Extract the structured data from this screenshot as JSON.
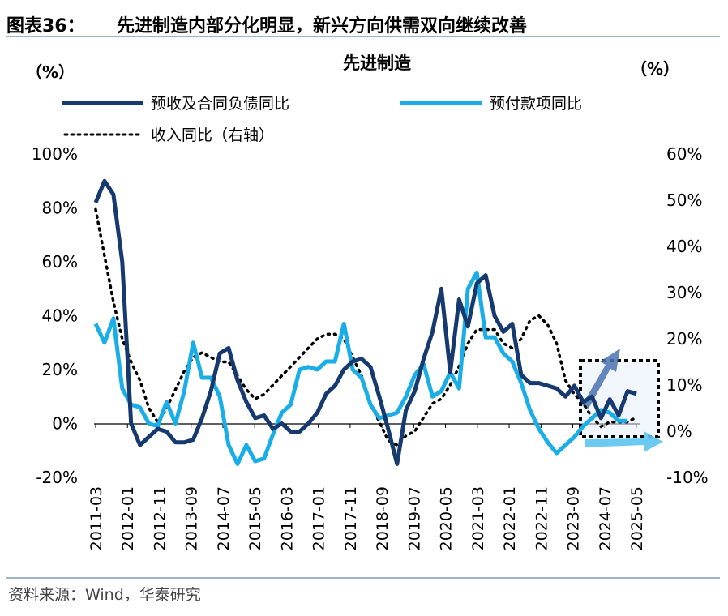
{
  "figure": {
    "label": "图表36：",
    "title": "先进制造内部分化明显，新兴方向供需双向继续改善",
    "source": "资料来源：Wind，华泰研究"
  },
  "colors": {
    "contract_liab": "#163a70",
    "advance": "#1aaee8",
    "revenue": "#000000",
    "highlight_box": "#000000",
    "arrow_up": "#4a72b0",
    "arrow_right": "#5cc3ee"
  },
  "chart_data": {
    "type": "line",
    "title": "先进制造",
    "left_unit": "（%）",
    "right_unit": "（%）",
    "x_ticks": [
      "2011-03",
      "2012-01",
      "2012-11",
      "2013-09",
      "2014-07",
      "2015-05",
      "2016-03",
      "2017-01",
      "2017-11",
      "2018-09",
      "2019-07",
      "2020-05",
      "2021-03",
      "2022-01",
      "2022-11",
      "2023-09",
      "2024-07",
      "2025-05"
    ],
    "left_axis": {
      "min": -20,
      "max": 100,
      "ticks": [
        "-20%",
        "0%",
        "20%",
        "40%",
        "60%",
        "80%",
        "100%"
      ]
    },
    "right_axis": {
      "min": -10,
      "max": 60,
      "ticks": [
        "-10%",
        "0%",
        "10%",
        "20%",
        "30%",
        "40%",
        "50%",
        "60%"
      ]
    },
    "legend": [
      "预收及合同负债同比",
      "预付款项同比",
      "收入同比（右轴）"
    ],
    "series": [
      {
        "name": "预收及合同负债同比",
        "axis": "left",
        "style": "solid-dark",
        "points": [
          [
            0,
            82
          ],
          [
            1,
            90
          ],
          [
            2,
            85
          ],
          [
            3,
            60
          ],
          [
            4,
            0
          ],
          [
            5,
            -8
          ],
          [
            6,
            -5
          ],
          [
            7,
            -2
          ],
          [
            8,
            -3
          ],
          [
            9,
            -7
          ],
          [
            10,
            -7
          ],
          [
            11,
            -6
          ],
          [
            12,
            2
          ],
          [
            13,
            12
          ],
          [
            14,
            26
          ],
          [
            15,
            28
          ],
          [
            16,
            16
          ],
          [
            17,
            8
          ],
          [
            18,
            2
          ],
          [
            19,
            3
          ],
          [
            20,
            -2
          ],
          [
            21,
            0
          ],
          [
            22,
            -3
          ],
          [
            23,
            -3
          ],
          [
            24,
            0
          ],
          [
            25,
            4
          ],
          [
            26,
            11
          ],
          [
            27,
            14
          ],
          [
            28,
            20
          ],
          [
            29,
            23
          ],
          [
            30,
            24
          ],
          [
            31,
            21
          ],
          [
            32,
            10
          ],
          [
            33,
            -2
          ],
          [
            34,
            -15
          ],
          [
            35,
            5
          ],
          [
            36,
            12
          ],
          [
            37,
            24
          ],
          [
            38,
            34
          ],
          [
            39,
            50
          ],
          [
            40,
            19
          ],
          [
            41,
            46
          ],
          [
            42,
            36
          ],
          [
            43,
            52
          ],
          [
            44,
            55
          ],
          [
            45,
            40
          ],
          [
            46,
            34
          ],
          [
            47,
            37
          ],
          [
            48,
            18
          ],
          [
            49,
            15
          ],
          [
            50,
            15
          ],
          [
            51,
            14
          ],
          [
            52,
            13
          ],
          [
            53,
            10
          ],
          [
            54,
            14
          ],
          [
            55,
            8
          ],
          [
            56,
            10
          ],
          [
            57,
            2
          ],
          [
            58,
            9
          ],
          [
            59,
            3
          ],
          [
            60,
            12
          ],
          [
            61,
            11
          ]
        ]
      },
      {
        "name": "预付款项同比",
        "axis": "left",
        "style": "solid-light",
        "points": [
          [
            0,
            37
          ],
          [
            1,
            30
          ],
          [
            2,
            39
          ],
          [
            3,
            13
          ],
          [
            4,
            7
          ],
          [
            5,
            6
          ],
          [
            6,
            0
          ],
          [
            7,
            -1
          ],
          [
            8,
            8
          ],
          [
            9,
            0
          ],
          [
            10,
            12
          ],
          [
            11,
            30
          ],
          [
            12,
            17
          ],
          [
            13,
            17
          ],
          [
            14,
            10
          ],
          [
            15,
            -8
          ],
          [
            16,
            -15
          ],
          [
            17,
            -8
          ],
          [
            18,
            -14
          ],
          [
            19,
            -13
          ],
          [
            20,
            -4
          ],
          [
            21,
            4
          ],
          [
            22,
            7
          ],
          [
            23,
            20
          ],
          [
            24,
            21
          ],
          [
            25,
            20
          ],
          [
            26,
            23
          ],
          [
            27,
            23
          ],
          [
            28,
            37
          ],
          [
            29,
            20
          ],
          [
            30,
            17
          ],
          [
            31,
            7
          ],
          [
            32,
            2
          ],
          [
            33,
            3
          ],
          [
            34,
            4
          ],
          [
            35,
            10
          ],
          [
            36,
            18
          ],
          [
            37,
            22
          ],
          [
            38,
            10
          ],
          [
            39,
            12
          ],
          [
            40,
            19
          ],
          [
            41,
            13
          ],
          [
            42,
            50
          ],
          [
            43,
            56
          ],
          [
            44,
            32
          ],
          [
            45,
            32
          ],
          [
            46,
            26
          ],
          [
            47,
            23
          ],
          [
            48,
            15
          ],
          [
            49,
            5
          ],
          [
            50,
            -2
          ],
          [
            51,
            -7
          ],
          [
            52,
            -11
          ],
          [
            53,
            -8
          ],
          [
            54,
            -5
          ],
          [
            55,
            -1
          ],
          [
            56,
            2
          ],
          [
            57,
            5
          ],
          [
            58,
            4
          ],
          [
            59,
            1
          ],
          [
            60,
            1
          ]
        ]
      },
      {
        "name": "收入同比（右轴）",
        "axis": "right",
        "style": "dotted",
        "points": [
          [
            0,
            48
          ],
          [
            1,
            38
          ],
          [
            2,
            28
          ],
          [
            3,
            20
          ],
          [
            4,
            15
          ],
          [
            5,
            11
          ],
          [
            6,
            5
          ],
          [
            7,
            2
          ],
          [
            8,
            5
          ],
          [
            9,
            9
          ],
          [
            10,
            13
          ],
          [
            11,
            16
          ],
          [
            12,
            17
          ],
          [
            13,
            16
          ],
          [
            14,
            15
          ],
          [
            15,
            15
          ],
          [
            16,
            12
          ],
          [
            17,
            9
          ],
          [
            18,
            7
          ],
          [
            19,
            8
          ],
          [
            20,
            10
          ],
          [
            21,
            12
          ],
          [
            22,
            14
          ],
          [
            23,
            16
          ],
          [
            24,
            18
          ],
          [
            25,
            20
          ],
          [
            26,
            21
          ],
          [
            27,
            21
          ],
          [
            28,
            20
          ],
          [
            29,
            16
          ],
          [
            30,
            12
          ],
          [
            31,
            6
          ],
          [
            32,
            2
          ],
          [
            33,
            -2
          ],
          [
            34,
            -3
          ],
          [
            35,
            -1
          ],
          [
            36,
            0
          ],
          [
            37,
            3
          ],
          [
            38,
            6
          ],
          [
            39,
            7
          ],
          [
            40,
            10
          ],
          [
            41,
            14
          ],
          [
            42,
            19
          ],
          [
            43,
            22
          ],
          [
            44,
            22
          ],
          [
            45,
            22
          ],
          [
            46,
            19
          ],
          [
            47,
            18
          ],
          [
            48,
            20
          ],
          [
            49,
            24
          ],
          [
            50,
            25
          ],
          [
            51,
            23
          ],
          [
            52,
            19
          ],
          [
            53,
            11
          ],
          [
            54,
            8
          ],
          [
            55,
            6
          ],
          [
            56,
            3
          ],
          [
            57,
            1
          ],
          [
            58,
            2
          ],
          [
            59,
            2
          ],
          [
            60,
            2
          ],
          [
            61,
            3
          ]
        ]
      }
    ]
  }
}
